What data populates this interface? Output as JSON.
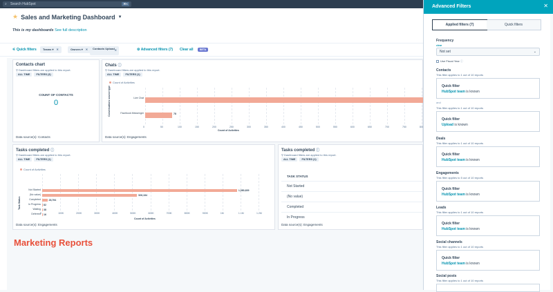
{
  "topbar": {
    "search_placeholder": "Search HubSpot",
    "search_kbd": "⌘K"
  },
  "header": {
    "title": "Sales and Marketing Dashboard",
    "subtitle": "This is my dashboards",
    "see_full": "See full description"
  },
  "filters": {
    "quick_filters": "Quick filters",
    "chips": [
      {
        "label": "Teams ▾"
      },
      {
        "label": "Owners ▾"
      },
      {
        "label": "Contacts Upload"
      }
    ],
    "advanced": "Advanced filters (7)",
    "clear_all": "Clear all",
    "beta": "BETA"
  },
  "contacts_chart": {
    "title": "Contacts chart",
    "note": "Dashboard filters are applied to this report.",
    "tag1": "ALL TIME",
    "tag2": "FILTERS (3)",
    "count_label": "COUNT OF CONTACTS",
    "count_value": "0",
    "source": "Data source(s): Contacts"
  },
  "chats": {
    "title": "Chats",
    "note": "Dashboard filters are applied to this report.",
    "tag1": "ALL TIME",
    "tag2": "FILTERS (1)",
    "legend": "Count of Activities",
    "yaxis": "Conversations source type",
    "xaxis": "Count of Activities",
    "source": "Data source(s): Engagements",
    "chart_data": {
      "type": "bar",
      "categories": [
        "Live Chat",
        "Facebook Messenger"
      ],
      "values": [
        1050,
        78
      ],
      "value_labels": [
        "",
        "78"
      ],
      "xticks": [
        "0",
        "50",
        "100",
        "150",
        "200",
        "250",
        "300",
        "350",
        "400",
        "450",
        "500",
        "550",
        "600",
        "650",
        "700",
        "750",
        "800"
      ]
    }
  },
  "tasks": {
    "title": "Tasks completed",
    "note": "Dashboard filters are applied to this report.",
    "tag1": "ALL TIME",
    "tag2": "FILTERS (1)",
    "legend": "Count of Activities",
    "yaxis": "Task Status",
    "xaxis": "Count of Activities",
    "source": "Data source(s): Engagements",
    "chart_data": {
      "type": "bar",
      "categories": [
        "Not Started",
        "(No value)",
        "Completed",
        "In Progress",
        "Waiting",
        "Deferred"
      ],
      "values": [
        1080639,
        526184,
        28794,
        82,
        38,
        16
      ],
      "value_labels": [
        "1,080,639",
        "526,184",
        "28,794",
        "82",
        "38",
        "16"
      ],
      "xticks": [
        "0",
        "100K",
        "200K",
        "300K",
        "400K",
        "500K",
        "600K",
        "700K",
        "800K",
        "900K",
        "1M",
        "1.1M",
        "1.2M"
      ]
    }
  },
  "tasks2": {
    "title": "Tasks completed",
    "note": "Dashboard filters are applied to this report.",
    "tag1": "ALL TIME",
    "tag2": "FILTERS (1)",
    "head": "TASK STATUS",
    "rows": [
      "Not Started",
      "(No value)",
      "Completed",
      "In Progress"
    ],
    "source": "Data source(s): Engagements"
  },
  "marketing": {
    "title": "Marketing Reports"
  },
  "panel": {
    "title": "Advanced Filters",
    "tab_applied": "Applied filters (7)",
    "tab_quick": "Quick filters",
    "frequency": "Frequency",
    "clear": "clear",
    "freq_value": "Not set",
    "fiscal": "Use Fiscal Year",
    "sections": [
      {
        "label": "Contacts",
        "sub": "This filter applies to 1 out of 10 reports",
        "qf": "Quick filter",
        "value": "HubSpot team",
        "suffix": " is known"
      },
      {
        "label": "and",
        "sub": "This filter applies to 1 out of 10 reports",
        "qf": "Quick filter",
        "value": "Upload",
        "suffix": " is known"
      },
      {
        "label": "Deals",
        "sub": "This filter applies to 1 out of 10 reports",
        "qf": "Quick filter",
        "value": "HubSpot team",
        "suffix": " is known"
      },
      {
        "label": "Engagements",
        "sub": "This filter applies to 5 out of 10 reports",
        "qf": "Quick filter",
        "value": "HubSpot team",
        "suffix": " is known"
      },
      {
        "label": "Leads",
        "sub": "This filter applies to 1 out of 10 reports",
        "qf": "Quick filter",
        "value": "HubSpot team",
        "suffix": " is known"
      },
      {
        "label": "Social channels",
        "sub": "This filter applies to 1 out of 10 reports",
        "qf": "Quick filter",
        "value": "HubSpot team",
        "suffix": " is known"
      },
      {
        "label": "Social posts",
        "sub": "This filter applies to 1 out of 10 reports"
      }
    ]
  }
}
